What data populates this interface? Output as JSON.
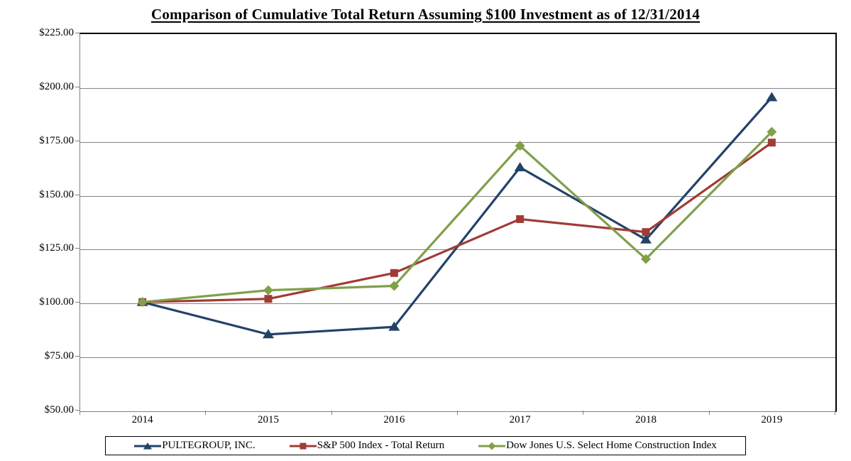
{
  "title": "Comparison of Cumulative Total Return Assuming $100 Investment as of 12/31/2014",
  "colors": {
    "pultegroup": "#234269",
    "sp500": "#A03B36",
    "dowjones_home_construction": "#80A049",
    "gridline": "#848484",
    "axis": "#808080",
    "plot_border": "#000000",
    "background": "#FFFFFF"
  },
  "chart_data": {
    "type": "line",
    "title": "Comparison of Cumulative Total Return Assuming $100 Investment as of 12/31/2014",
    "categories": [
      "2014",
      "2015",
      "2016",
      "2017",
      "2018",
      "2019"
    ],
    "series": [
      {
        "name": "PULTEGROUP, INC.",
        "marker": "triangle",
        "color": "#234269",
        "values": [
          100,
          85,
          88.5,
          162.5,
          129,
          195
        ]
      },
      {
        "name": "S&P 500 Index - Total Return",
        "marker": "square",
        "color": "#A03B36",
        "values": [
          100,
          101.5,
          113.5,
          138.5,
          132.5,
          174
        ]
      },
      {
        "name": "Dow Jones U.S. Select Home Construction Index",
        "marker": "diamond",
        "color": "#80A049",
        "values": [
          100,
          105.5,
          107.5,
          172.5,
          120,
          179
        ]
      }
    ],
    "xlabel": "",
    "ylabel": "",
    "ylim": [
      50,
      225
    ],
    "ytick_step": 25,
    "ytick_labels": [
      "$225.00",
      "$200.00",
      "$175.00",
      "$150.00",
      "$125.00",
      "$100.00",
      "$75.00",
      "$50.00"
    ],
    "grid": true,
    "legend_position": "bottom"
  }
}
